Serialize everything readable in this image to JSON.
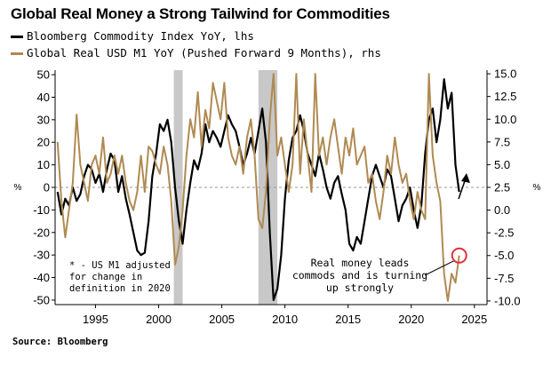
{
  "title": "Global Real Money a Strong Tailwind for Commodities",
  "source": "Source: Bloomberg",
  "colors": {
    "black_series": "#000000",
    "gold_series": "#b08a52",
    "recession": "#c8c8c8",
    "zero_line": "#9a9a9a",
    "highlight_circle": "#e0303a"
  },
  "chart_data": {
    "type": "line",
    "title": "Global Real Money a Strong Tailwind for Commodities",
    "legend_position": "top-left",
    "x_ticks": [
      1995,
      2000,
      2005,
      2010,
      2015,
      2020,
      2025
    ],
    "xlim": [
      1991.8,
      2026
    ],
    "left_axis": {
      "unit_label": "%",
      "ylim": [
        -52,
        52
      ],
      "ticks": [
        50,
        40,
        30,
        20,
        10,
        0,
        -10,
        -20,
        -30,
        -40,
        -50
      ]
    },
    "right_axis": {
      "unit_label": "%",
      "ylim": [
        -10.4,
        15.4
      ],
      "ticks": [
        "15.0",
        "12.5",
        "10.0",
        "7.5",
        "5.0",
        "2.5",
        "0.0",
        "-2.5",
        "-5.0",
        "-7.5",
        "-10.0"
      ]
    },
    "recession_bands": [
      [
        2001.2,
        2001.9
      ],
      [
        2007.9,
        2009.4
      ]
    ],
    "series": [
      {
        "name": "Bloomberg Commodity Index YoY, lhs",
        "axis": "left",
        "color": "#000000",
        "x": [
          1992.0,
          1992.3,
          1992.6,
          1992.9,
          1993.2,
          1993.5,
          1993.8,
          1994.1,
          1994.4,
          1994.7,
          1995.0,
          1995.3,
          1995.6,
          1995.9,
          1996.2,
          1996.5,
          1996.8,
          1997.1,
          1997.4,
          1997.7,
          1998.0,
          1998.3,
          1998.6,
          1998.9,
          1999.2,
          1999.5,
          1999.8,
          2000.1,
          2000.4,
          2000.7,
          2001.0,
          2001.3,
          2001.6,
          2001.9,
          2002.2,
          2002.5,
          2002.8,
          2003.1,
          2003.4,
          2003.7,
          2004.0,
          2004.3,
          2004.6,
          2004.9,
          2005.2,
          2005.5,
          2005.8,
          2006.1,
          2006.4,
          2006.7,
          2007.0,
          2007.3,
          2007.6,
          2007.9,
          2008.2,
          2008.5,
          2008.8,
          2009.1,
          2009.4,
          2009.7,
          2010.0,
          2010.3,
          2010.6,
          2010.9,
          2011.2,
          2011.5,
          2011.8,
          2012.1,
          2012.4,
          2012.7,
          2013.0,
          2013.3,
          2013.6,
          2013.9,
          2014.2,
          2014.5,
          2014.8,
          2015.1,
          2015.4,
          2015.7,
          2016.0,
          2016.3,
          2016.6,
          2016.9,
          2017.2,
          2017.5,
          2017.8,
          2018.1,
          2018.4,
          2018.7,
          2019.0,
          2019.3,
          2019.6,
          2019.9,
          2020.2,
          2020.5,
          2020.8,
          2021.1,
          2021.4,
          2021.7,
          2022.0,
          2022.3,
          2022.6,
          2022.9,
          2023.2,
          2023.5,
          2023.8
        ],
        "values": [
          -2,
          -12,
          -5,
          -8,
          0,
          -6,
          -3,
          5,
          10,
          8,
          2,
          6,
          -2,
          8,
          15,
          12,
          -2,
          5,
          -5,
          -12,
          -20,
          -28,
          -30,
          -29,
          -15,
          5,
          15,
          28,
          25,
          30,
          20,
          0,
          -15,
          -25,
          -10,
          2,
          12,
          8,
          15,
          28,
          20,
          25,
          22,
          18,
          25,
          32,
          28,
          25,
          18,
          10,
          15,
          22,
          15,
          25,
          35,
          20,
          -20,
          -50,
          -45,
          -30,
          -5,
          12,
          22,
          25,
          32,
          25,
          15,
          10,
          5,
          15,
          8,
          0,
          -5,
          2,
          5,
          -3,
          -10,
          -25,
          -28,
          -22,
          -25,
          -15,
          -5,
          5,
          10,
          5,
          0,
          8,
          5,
          -5,
          -15,
          -8,
          -5,
          0,
          -10,
          -18,
          -8,
          15,
          30,
          35,
          20,
          30,
          48,
          35,
          42,
          10,
          -2
        ]
      },
      {
        "name": "Global Real USD M1 YoY (Pushed Forward 9 Months), rhs",
        "axis": "right",
        "color": "#b08a52",
        "x": [
          1992.0,
          1992.3,
          1992.6,
          1992.9,
          1993.2,
          1993.5,
          1993.8,
          1994.1,
          1994.4,
          1994.7,
          1995.0,
          1995.3,
          1995.6,
          1995.9,
          1996.2,
          1996.5,
          1996.8,
          1997.1,
          1997.4,
          1997.7,
          1998.0,
          1998.3,
          1998.6,
          1998.9,
          1999.2,
          1999.5,
          1999.8,
          2000.1,
          2000.4,
          2000.7,
          2001.0,
          2001.3,
          2001.6,
          2001.9,
          2002.2,
          2002.5,
          2002.8,
          2003.1,
          2003.4,
          2003.7,
          2004.0,
          2004.3,
          2004.6,
          2004.9,
          2005.2,
          2005.5,
          2005.8,
          2006.1,
          2006.4,
          2006.7,
          2007.0,
          2007.3,
          2007.6,
          2007.9,
          2008.2,
          2008.5,
          2008.8,
          2009.1,
          2009.4,
          2009.7,
          2010.0,
          2010.3,
          2010.6,
          2010.9,
          2011.2,
          2011.5,
          2011.8,
          2012.1,
          2012.4,
          2012.7,
          2013.0,
          2013.3,
          2013.6,
          2013.9,
          2014.2,
          2014.5,
          2014.8,
          2015.1,
          2015.4,
          2015.7,
          2016.0,
          2016.3,
          2016.6,
          2016.9,
          2017.2,
          2017.5,
          2017.8,
          2018.1,
          2018.4,
          2018.7,
          2019.0,
          2019.3,
          2019.6,
          2019.9,
          2020.2,
          2020.5,
          2020.8,
          2021.1,
          2021.4,
          2021.7,
          2022.0,
          2022.3,
          2022.6,
          2022.9,
          2023.2,
          2023.5,
          2023.8
        ],
        "values": [
          7.5,
          1,
          -3,
          0,
          3,
          10.5,
          5,
          3,
          1,
          5,
          6,
          4,
          8,
          3,
          4,
          6,
          4,
          6,
          3,
          1,
          0,
          2,
          6,
          2,
          7,
          6.5,
          5,
          4,
          7,
          5,
          1,
          -6,
          -4,
          0,
          6,
          10,
          8,
          13,
          7,
          11,
          9,
          14,
          12,
          10,
          14,
          8,
          6,
          5,
          7,
          4,
          8,
          10,
          6,
          -1,
          -2,
          2,
          10,
          15,
          6,
          8,
          5,
          2,
          5,
          15,
          4,
          10,
          6,
          2,
          15,
          6,
          8,
          5,
          8,
          10,
          7,
          4,
          8,
          6,
          9,
          5,
          6,
          7,
          3,
          4,
          1,
          -1,
          2,
          6,
          4,
          8,
          5,
          3,
          4,
          1,
          -1,
          2,
          0,
          -1,
          15,
          6,
          3,
          1,
          -7,
          -10,
          -7,
          -8,
          -5
        ]
      }
    ]
  },
  "annotations": {
    "footnote": [
      "* - US M1 adjusted",
      "for change in",
      "definition in 2020"
    ],
    "callout": [
      "Real money leads",
      "commods and is turning",
      "up strongly"
    ]
  }
}
